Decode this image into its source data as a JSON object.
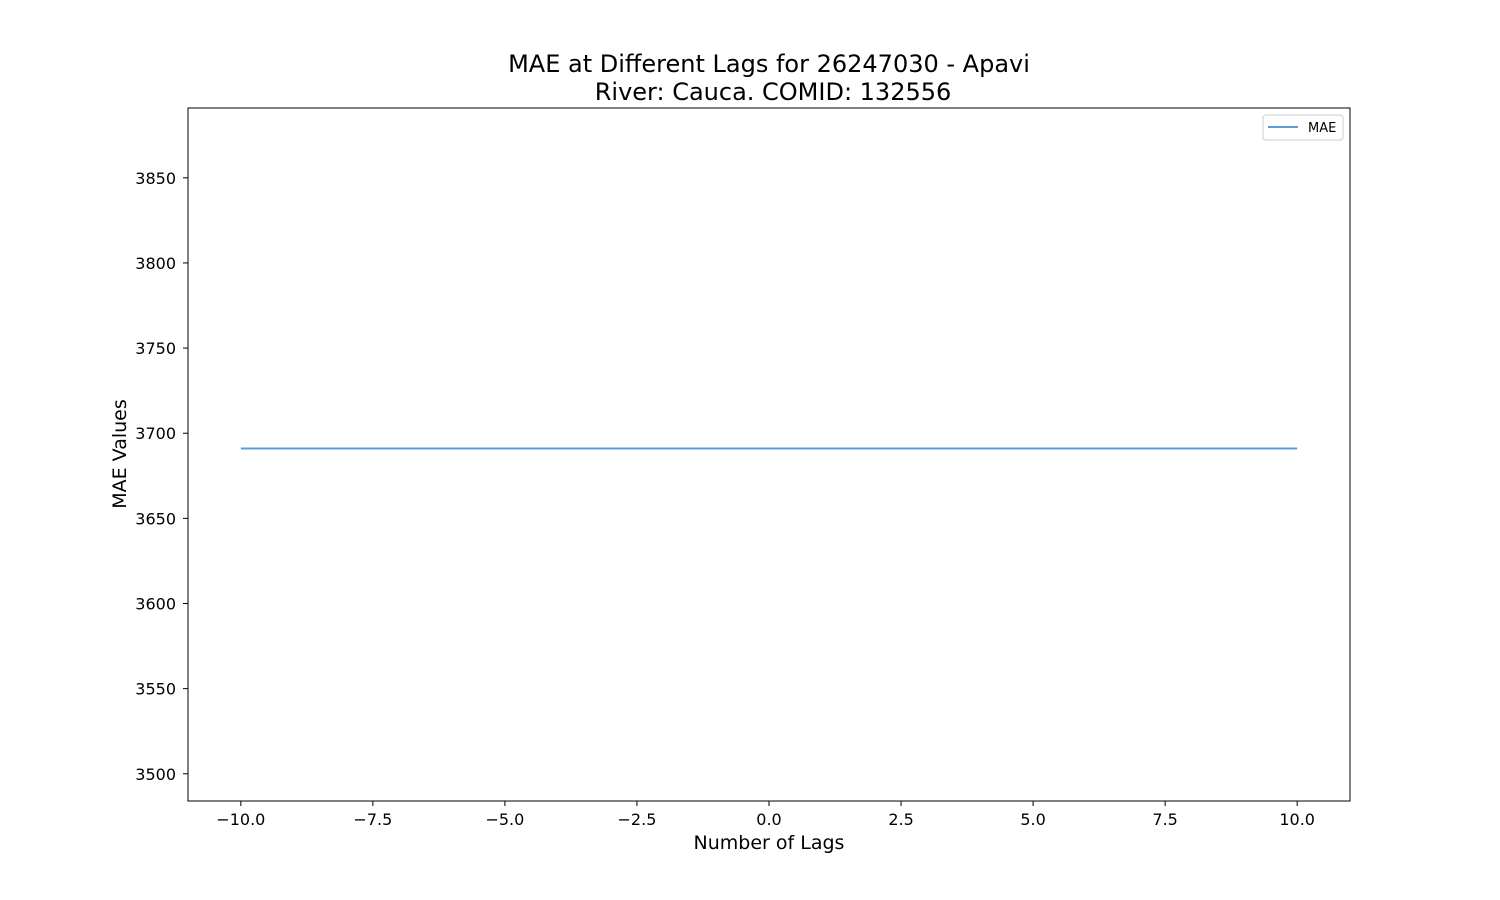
{
  "chart_data": {
    "type": "line",
    "title": "MAE at Different Lags for 26247030 - Apavi\nRiver: Cauca. COMID: 132556",
    "title_lines": [
      "MAE at Different Lags for 26247030 - Apavi",
      "River: Cauca. COMID: 132556"
    ],
    "xlabel": "Number of Lags",
    "ylabel": "MAE Values",
    "xlim": [
      -11,
      11
    ],
    "ylim": [
      3484,
      3891
    ],
    "xticks": [
      {
        "value": -10.0,
        "label": "−10.0"
      },
      {
        "value": -7.5,
        "label": "−7.5"
      },
      {
        "value": -5.0,
        "label": "−5.0"
      },
      {
        "value": -2.5,
        "label": "−2.5"
      },
      {
        "value": 0.0,
        "label": "0.0"
      },
      {
        "value": 2.5,
        "label": "2.5"
      },
      {
        "value": 5.0,
        "label": "5.0"
      },
      {
        "value": 7.5,
        "label": "7.5"
      },
      {
        "value": 10.0,
        "label": "10.0"
      }
    ],
    "yticks": [
      {
        "value": 3500,
        "label": "3500"
      },
      {
        "value": 3550,
        "label": "3550"
      },
      {
        "value": 3600,
        "label": "3600"
      },
      {
        "value": 3650,
        "label": "3650"
      },
      {
        "value": 3700,
        "label": "3700"
      },
      {
        "value": 3750,
        "label": "3750"
      },
      {
        "value": 3800,
        "label": "3800"
      },
      {
        "value": 3850,
        "label": "3850"
      }
    ],
    "grid": false,
    "legend_position": "top-right",
    "series": [
      {
        "name": "MAE",
        "color": "#5b9bd5",
        "x": [
          -10,
          -9,
          -8,
          -7,
          -6,
          -5,
          -4,
          -3,
          -2,
          -1,
          0,
          1,
          2,
          3,
          4,
          5,
          6,
          7,
          8,
          9,
          10
        ],
        "y": [
          3691,
          3691,
          3691,
          3691,
          3691,
          3691,
          3691,
          3691,
          3691,
          3691,
          3691,
          3691,
          3691,
          3691,
          3691,
          3691,
          3691,
          3691,
          3691,
          3691,
          3691
        ]
      }
    ]
  }
}
